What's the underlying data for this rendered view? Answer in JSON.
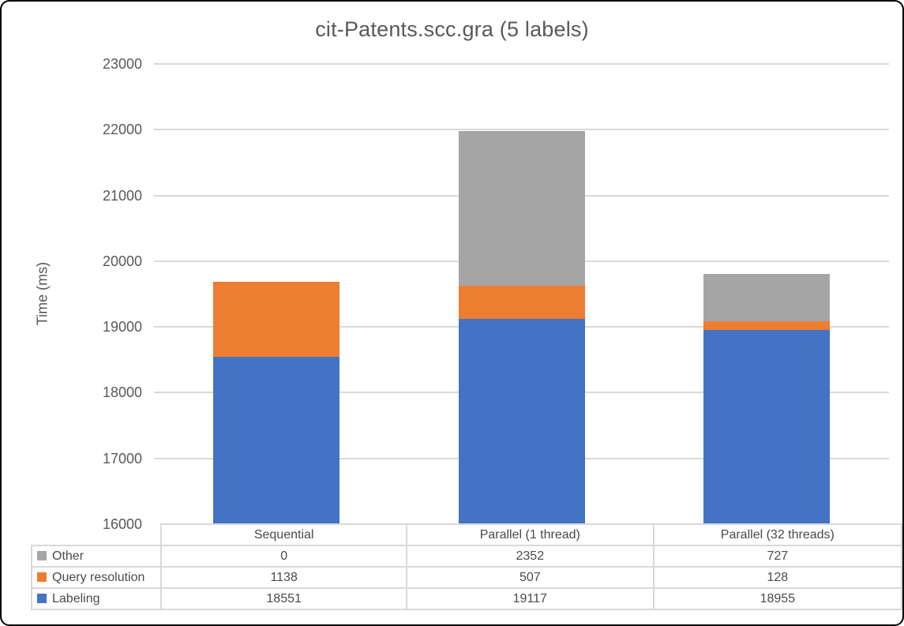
{
  "chart_data": {
    "type": "bar",
    "stacked": true,
    "title": "cit-Patents.scc.gra (5 labels)",
    "ylabel": "Time (ms)",
    "xlabel": "",
    "categories": [
      "Sequential",
      "Parallel (1 thread)",
      "Parallel (32 threads)"
    ],
    "series": [
      {
        "name": "Labeling",
        "color": "#4472C4",
        "values": [
          18551,
          19117,
          18955
        ]
      },
      {
        "name": "Query resolution",
        "color": "#ED7D31",
        "values": [
          1138,
          507,
          128
        ]
      },
      {
        "name": "Other",
        "color": "#A5A5A5",
        "values": [
          0,
          2352,
          727
        ]
      }
    ],
    "ylim": [
      16000,
      23000
    ],
    "yticks": [
      16000,
      17000,
      18000,
      19000,
      20000,
      21000,
      22000,
      23000
    ],
    "grid": true,
    "legend_position": "data-table-left",
    "data_table_row_order": [
      "Other",
      "Query resolution",
      "Labeling"
    ]
  },
  "colors": {
    "labeling": "#4472C4",
    "query_resolution": "#ED7D31",
    "other": "#A5A5A5",
    "gridline": "#D9D9D9",
    "table_border": "#D9D9D9",
    "text": "#595959",
    "frame_border": "#000000",
    "background": "#FFFFFF"
  }
}
